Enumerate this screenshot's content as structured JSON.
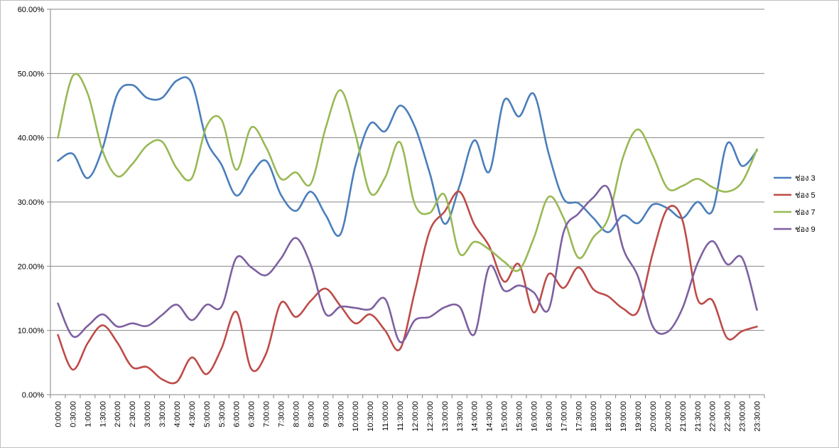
{
  "chart_data": {
    "type": "line",
    "title": "",
    "xlabel": "",
    "ylabel": "",
    "ylim": [
      0,
      60
    ],
    "y_ticks": [
      "0.00%",
      "10.00%",
      "20.00%",
      "30.00%",
      "40.00%",
      "50.00%",
      "60.00%"
    ],
    "grid": "horizontal",
    "legend_position": "right",
    "x": [
      "0:00:00",
      "0:30:00",
      "1:00:00",
      "1:30:00",
      "2:00:00",
      "2:30:00",
      "3:00:00",
      "3:30:00",
      "4:00:00",
      "4:30:00",
      "5:00:00",
      "5:30:00",
      "6:00:00",
      "6:30:00",
      "7:00:00",
      "7:30:00",
      "8:00:00",
      "8:30:00",
      "9:00:00",
      "9:30:00",
      "10:00:00",
      "10:30:00",
      "11:00:00",
      "11:30:00",
      "12:00:00",
      "12:30:00",
      "13:00:00",
      "13:30:00",
      "14:00:00",
      "14:30:00",
      "15:00:00",
      "15:30:00",
      "16:00:00",
      "16:30:00",
      "17:00:00",
      "17:30:00",
      "18:00:00",
      "18:30:00",
      "19:00:00",
      "19:30:00",
      "20:00:00",
      "20:30:00",
      "21:00:00",
      "21:30:00",
      "22:00:00",
      "22:30:00",
      "23:00:00",
      "23:30:00"
    ],
    "series": [
      {
        "name": "ช่อง 3",
        "color": "#4a7ebb",
        "values": [
          36.4,
          37.5,
          33.7,
          38.3,
          46.8,
          48.2,
          46.2,
          46.2,
          48.9,
          48.5,
          39.6,
          35.8,
          31.0,
          34.3,
          36.4,
          31.1,
          28.6,
          31.6,
          28.0,
          25.0,
          35.6,
          42.2,
          41.0,
          45.0,
          41.7,
          34.5,
          26.6,
          32.5,
          39.6,
          34.7,
          45.8,
          43.3,
          46.8,
          37.5,
          30.5,
          29.8,
          27.5,
          25.3,
          27.9,
          26.7,
          29.6,
          29.0,
          27.5,
          30.0,
          28.6,
          39.1,
          35.6,
          38.0
        ]
      },
      {
        "name": "ช่อง 5",
        "color": "#be4b48",
        "values": [
          9.3,
          3.9,
          8.0,
          10.8,
          8.1,
          4.3,
          4.3,
          2.4,
          2.0,
          5.8,
          3.2,
          7.2,
          12.9,
          4.0,
          6.4,
          14.3,
          12.1,
          14.6,
          16.5,
          13.8,
          11.1,
          12.5,
          10.0,
          7.1,
          16.1,
          25.5,
          28.5,
          31.6,
          26.5,
          23.1,
          17.6,
          20.3,
          12.8,
          18.8,
          16.6,
          19.8,
          16.4,
          15.3,
          13.4,
          13.0,
          22.1,
          29.0,
          27.1,
          14.9,
          14.7,
          8.8,
          9.9,
          10.6
        ]
      },
      {
        "name": "ช่อง 7",
        "color": "#98b954",
        "values": [
          40.0,
          49.6,
          46.9,
          38.0,
          34.0,
          35.9,
          38.8,
          39.4,
          35.2,
          33.7,
          41.8,
          42.8,
          35.0,
          41.6,
          38.5,
          33.6,
          34.6,
          32.8,
          41.5,
          47.4,
          40.6,
          31.4,
          33.8,
          39.3,
          29.6,
          28.3,
          31.1,
          22.0,
          23.8,
          22.6,
          20.7,
          19.4,
          24.4,
          30.8,
          27.5,
          21.3,
          24.5,
          27.5,
          37.0,
          41.3,
          37.2,
          32.1,
          32.5,
          33.6,
          32.3,
          31.6,
          33.1,
          38.2
        ]
      },
      {
        "name": "ช่อง 9",
        "color": "#7d60a0",
        "values": [
          14.2,
          9.1,
          10.7,
          12.5,
          10.6,
          11.1,
          10.7,
          12.4,
          14.0,
          11.6,
          14.0,
          13.7,
          21.3,
          19.8,
          18.6,
          21.2,
          24.4,
          20.2,
          12.6,
          13.7,
          13.5,
          13.3,
          14.9,
          8.2,
          11.6,
          12.1,
          13.6,
          13.7,
          9.4,
          19.9,
          16.2,
          17.0,
          15.9,
          13.3,
          25.3,
          28.2,
          30.7,
          32.1,
          22.8,
          18.4,
          10.6,
          9.8,
          13.5,
          20.4,
          23.9,
          20.3,
          21.3,
          13.2
        ]
      }
    ]
  }
}
